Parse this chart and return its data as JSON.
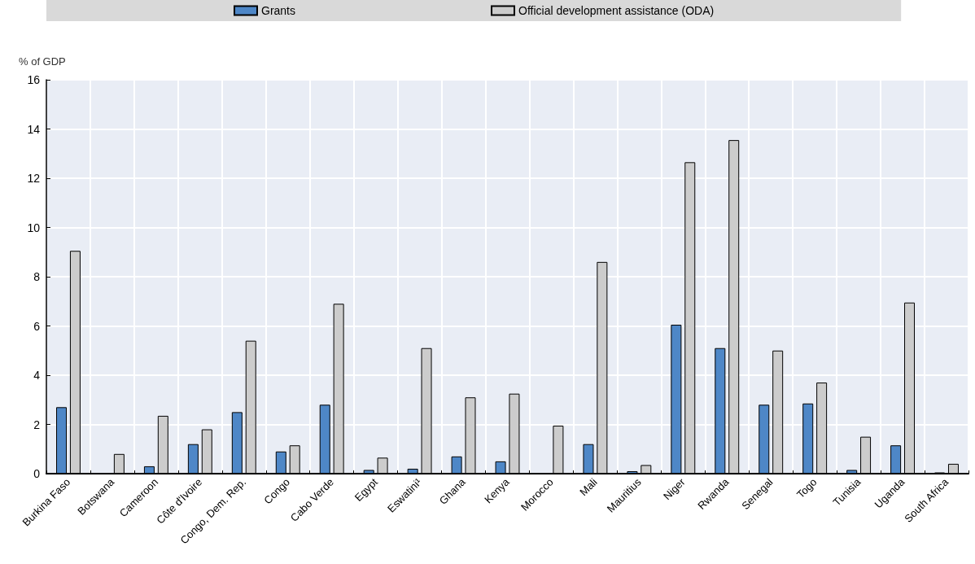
{
  "chart_data": {
    "type": "bar",
    "ylabel": "% of GDP",
    "categories": [
      "Burkina Faso",
      "Botswana",
      "Cameroon",
      "Côte d'Ivoire",
      "Congo, Dem. Rep.",
      "Congo",
      "Cabo Verde",
      "Egypt",
      "Eswatini¹",
      "Ghana",
      "Kenya",
      "Morocco",
      "Mali",
      "Mauritius",
      "Niger",
      "Rwanda",
      "Senegal",
      "Togo",
      "Tunisia",
      "Uganda",
      "South Africa"
    ],
    "series": [
      {
        "name": "Grants",
        "color": "#4e87c7",
        "values": [
          2.7,
          0,
          0.3,
          1.2,
          2.5,
          0.9,
          2.8,
          0.15,
          0.2,
          0.7,
          0.5,
          0,
          1.2,
          0.1,
          6.05,
          5.1,
          2.8,
          2.85,
          0.15,
          1.15,
          0.05
        ]
      },
      {
        "name": "Official development assistance (ODA)",
        "color": "#cccccc",
        "values": [
          9.05,
          0.8,
          2.35,
          1.8,
          5.4,
          1.15,
          6.9,
          0.65,
          5.1,
          3.1,
          3.25,
          1.95,
          8.6,
          0.35,
          12.65,
          13.55,
          5.0,
          3.7,
          1.5,
          6.95,
          0.4
        ]
      }
    ],
    "ylim": [
      0,
      16
    ],
    "yticks": [
      0,
      2,
      4,
      6,
      8,
      10,
      12,
      14,
      16
    ],
    "grid": true,
    "legend": "top"
  }
}
